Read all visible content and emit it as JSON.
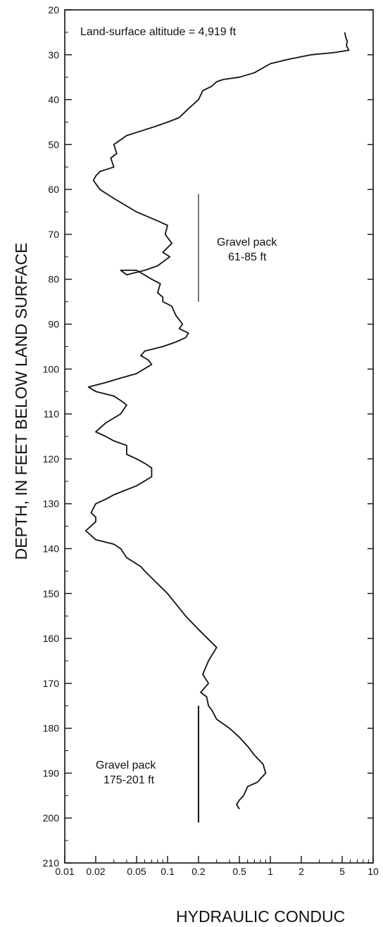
{
  "chart_data": {
    "type": "line",
    "xlabel": "HYDRAULIC CONDUC",
    "ylabel": "DEPTH, IN FEET BELOW LAND SURFACE",
    "x_scale": "log",
    "xlim": [
      0.01,
      10
    ],
    "ylim": [
      20,
      210
    ],
    "y_inverted": true,
    "x_ticks": [
      0.01,
      0.02,
      0.05,
      0.1,
      0.2,
      0.5,
      1,
      2,
      5,
      10
    ],
    "x_tick_labels": [
      "0.01",
      "0.02",
      "0.05",
      "0.1",
      "0.2",
      "0.5",
      "1",
      "2",
      "5",
      "10"
    ],
    "y_ticks": [
      20,
      30,
      40,
      50,
      60,
      70,
      80,
      90,
      100,
      110,
      120,
      130,
      140,
      150,
      160,
      170,
      180,
      190,
      200,
      210
    ],
    "y_tick_labels": [
      "20",
      "30",
      "40",
      "50",
      "60",
      "70",
      "80",
      "90",
      "100",
      "110",
      "120",
      "130",
      "140",
      "150",
      "160",
      "170",
      "180",
      "190",
      "200",
      "210"
    ],
    "grid": false,
    "annotations": {
      "altitude": "Land-surface altitude = 4,919 ft",
      "gravel_upper_l1": "Gravel pack",
      "gravel_upper_l2": "61-85 ft",
      "gravel_lower_l1": "Gravel pack",
      "gravel_lower_l2": "175-201 ft"
    },
    "gravel_packs": [
      {
        "x": 0.2,
        "depth_top": 61,
        "depth_bottom": 85,
        "color": "#777777"
      },
      {
        "x": 0.2,
        "depth_top": 175,
        "depth_bottom": 201,
        "color": "#111111"
      }
    ],
    "series": [
      {
        "color": "#111111",
        "x": [
          5.3,
          5.4,
          5.6,
          5.5,
          5.8,
          4.2,
          2.5,
          1.5,
          1.0,
          0.7,
          0.5,
          0.35,
          0.3,
          0.27,
          0.22,
          0.2,
          0.16,
          0.13,
          0.1,
          0.075,
          0.055,
          0.04,
          0.03,
          0.032,
          0.028,
          0.03,
          0.022,
          0.02,
          0.019,
          0.022,
          0.03,
          0.05,
          0.08,
          0.1,
          0.095,
          0.11,
          0.09,
          0.105,
          0.08,
          0.06,
          0.04,
          0.035,
          0.05,
          0.07,
          0.085,
          0.08,
          0.09,
          0.09,
          0.11,
          0.12,
          0.14,
          0.13,
          0.16,
          0.15,
          0.12,
          0.09,
          0.06,
          0.055,
          0.065,
          0.07,
          0.05,
          0.035,
          0.025,
          0.017,
          0.02,
          0.03,
          0.035,
          0.04,
          0.035,
          0.025,
          0.02,
          0.025,
          0.03,
          0.04,
          0.04,
          0.05,
          0.06,
          0.07,
          0.07,
          0.05,
          0.03,
          0.025,
          0.02,
          0.018,
          0.02,
          0.02,
          0.016,
          0.02,
          0.03,
          0.035,
          0.04,
          0.055,
          0.06,
          0.1,
          0.15,
          0.2,
          0.3,
          0.25,
          0.22,
          0.25,
          0.21,
          0.24,
          0.25,
          0.27,
          0.3,
          0.4,
          0.5,
          0.6,
          0.7,
          0.85,
          0.9,
          0.75,
          0.6,
          0.55,
          0.5,
          0.47,
          0.5
        ],
        "y": [
          25,
          26,
          27,
          28,
          29,
          29.5,
          30,
          31,
          32,
          34,
          35,
          35.5,
          36,
          37,
          38,
          40,
          42,
          44,
          45,
          46,
          47,
          48,
          50,
          52,
          53,
          55,
          56,
          57,
          58,
          60,
          62,
          65,
          67,
          68,
          70,
          72,
          74,
          75,
          77,
          78,
          79,
          78,
          78,
          80,
          81,
          83,
          84,
          85,
          86,
          88,
          90,
          91,
          92,
          93,
          94,
          95,
          96,
          97,
          98,
          99,
          101,
          102,
          103,
          104,
          105,
          106,
          107,
          108,
          110,
          112,
          114,
          115,
          116,
          117,
          119,
          120,
          121,
          122,
          124,
          126,
          128,
          129,
          130,
          132,
          133,
          134,
          136,
          138,
          139,
          140,
          142,
          144,
          145,
          150,
          155,
          158,
          162,
          165,
          168,
          170,
          172,
          173,
          175,
          176,
          178,
          180,
          182,
          184,
          186,
          188,
          190,
          192,
          193,
          195,
          196,
          197,
          198
        ]
      }
    ]
  }
}
